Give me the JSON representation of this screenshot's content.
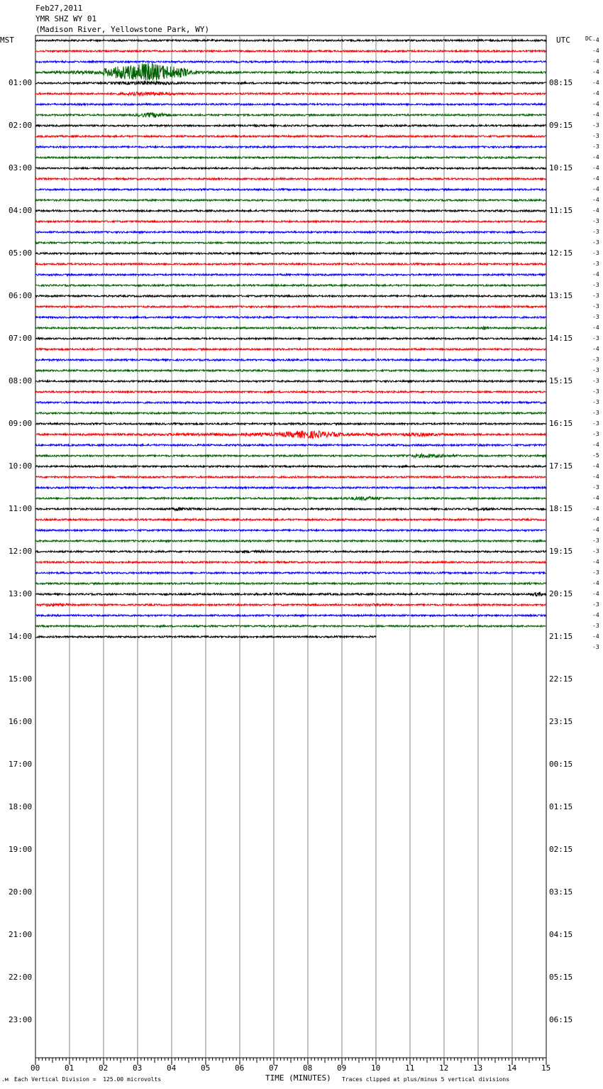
{
  "header": {
    "date": "Feb27,2011",
    "station": "YMR SHZ WY 01",
    "location": "(Madison River, Yellowstone Park, WY)"
  },
  "left_tz": "MST",
  "right_tz": "UTC",
  "dc_label": "DC",
  "footer": {
    "scale": "Each Vertical Division =  125.00 microvolts",
    "xtitle": "TIME (MINUTES)",
    "clip": "Traces clipped at plus/minus 5 vertical divisions"
  },
  "chart_data": {
    "type": "line",
    "title": "YMR SHZ WY 01",
    "xlabel": "TIME (MINUTES)",
    "xlim": [
      0,
      15
    ],
    "x_ticks": [
      "00",
      "01",
      "02",
      "03",
      "04",
      "05",
      "06",
      "07",
      "08",
      "09",
      "10",
      "11",
      "12",
      "13",
      "14",
      "15"
    ],
    "mst_hours": [
      "01:00",
      "02:00",
      "03:00",
      "04:00",
      "05:00",
      "06:00",
      "07:00",
      "08:00",
      "09:00",
      "10:00",
      "11:00",
      "12:00",
      "13:00",
      "14:00",
      "15:00",
      "16:00",
      "17:00",
      "18:00",
      "19:00",
      "20:00",
      "21:00",
      "22:00",
      "23:00"
    ],
    "utc_hours": [
      "08:15",
      "09:15",
      "10:15",
      "11:15",
      "12:15",
      "13:15",
      "14:15",
      "15:15",
      "16:15",
      "17:15",
      "18:15",
      "19:15",
      "20:15",
      "21:15",
      "22:15",
      "23:15",
      "00:15",
      "01:15",
      "02:15",
      "03:15",
      "04:15",
      "05:15",
      "06:15"
    ],
    "trace_colors": [
      "#000000",
      "#ff0000",
      "#0000ff",
      "#006400"
    ],
    "trace_minutes": 15,
    "traces_recorded": 57,
    "last_trace_end_minute": 10,
    "dc_offsets": [
      "-4",
      "-4",
      "-4",
      "-4",
      "-4",
      "-4",
      "-4",
      "-4",
      "-3",
      "-3",
      "-3",
      "-4",
      "-4",
      "-4",
      "-4",
      "-4",
      "-4",
      "-3",
      "-3",
      "-3",
      "-3",
      "-3",
      "-4",
      "-3",
      "-3",
      "-3",
      "-3",
      "-4",
      "-3",
      "-4",
      "-3",
      "-3",
      "-3",
      "-3",
      "-3",
      "-3",
      "-3",
      "-3",
      "-4",
      "-5",
      "-4",
      "-4",
      "-3",
      "-4",
      "-4",
      "-4",
      "-4",
      "-3",
      "-3",
      "-4",
      "-3",
      "-4",
      "-4",
      "-3",
      "-4",
      "-3",
      "-4",
      "-3"
    ],
    "events": [
      {
        "trace": 2,
        "start": 11,
        "end": 15,
        "amp": 1.6
      },
      {
        "trace": 3,
        "start": 0,
        "end": 6,
        "amp": 3.5
      },
      {
        "trace": 3,
        "start": 2,
        "end": 4.5,
        "amp": 14
      },
      {
        "trace": 4,
        "start": 2,
        "end": 4.5,
        "amp": 3
      },
      {
        "trace": 5,
        "start": 2,
        "end": 4.5,
        "amp": 3
      },
      {
        "trace": 7,
        "start": 2.9,
        "end": 4,
        "amp": 4
      },
      {
        "trace": 8,
        "start": 6.4,
        "end": 6.5,
        "amp": 4
      },
      {
        "trace": 17,
        "start": 5.6,
        "end": 5.7,
        "amp": 3
      },
      {
        "trace": 21,
        "start": 9.3,
        "end": 9.5,
        "amp": 2
      },
      {
        "trace": 21,
        "start": 11.4,
        "end": 11.6,
        "amp": 2
      },
      {
        "trace": 27,
        "start": 13.1,
        "end": 13.3,
        "amp": 3
      },
      {
        "trace": 30,
        "start": 11,
        "end": 15,
        "amp": 1.3
      },
      {
        "trace": 31,
        "start": 5,
        "end": 7,
        "amp": 1.5
      },
      {
        "trace": 34,
        "start": 2.5,
        "end": 6,
        "amp": 1.4
      },
      {
        "trace": 36,
        "start": 0,
        "end": 15,
        "amp": 1.3
      },
      {
        "trace": 37,
        "start": 0,
        "end": 15,
        "amp": 2.5
      },
      {
        "trace": 37,
        "start": 7,
        "end": 9,
        "amp": 6
      },
      {
        "trace": 37,
        "start": 10.5,
        "end": 12,
        "amp": 3
      },
      {
        "trace": 38,
        "start": 5,
        "end": 7,
        "amp": 1.5
      },
      {
        "trace": 38,
        "start": 12.3,
        "end": 13.8,
        "amp": 1.6
      },
      {
        "trace": 39,
        "start": 0,
        "end": 15,
        "amp": 1.3
      },
      {
        "trace": 39,
        "start": 10.5,
        "end": 12.5,
        "amp": 3
      },
      {
        "trace": 40,
        "start": 0,
        "end": 1,
        "amp": 1.4
      },
      {
        "trace": 42,
        "start": 1,
        "end": 2,
        "amp": 1.6
      },
      {
        "trace": 43,
        "start": 3,
        "end": 4.5,
        "amp": 1.5
      },
      {
        "trace": 43,
        "start": 8.8,
        "end": 10.5,
        "amp": 3
      },
      {
        "trace": 44,
        "start": 0,
        "end": 15,
        "amp": 1.3
      },
      {
        "trace": 44,
        "start": 3.5,
        "end": 5,
        "amp": 2.5
      },
      {
        "trace": 44,
        "start": 12.5,
        "end": 14,
        "amp": 2.2
      },
      {
        "trace": 48,
        "start": 5.2,
        "end": 7.5,
        "amp": 2
      },
      {
        "trace": 52,
        "start": 0,
        "end": 15,
        "amp": 1.5
      },
      {
        "trace": 52,
        "start": 14.5,
        "end": 15,
        "amp": 3.5
      },
      {
        "trace": 53,
        "start": 0,
        "end": 1.2,
        "amp": 2.5
      },
      {
        "trace": 53,
        "start": 9,
        "end": 11,
        "amp": 2
      }
    ]
  }
}
